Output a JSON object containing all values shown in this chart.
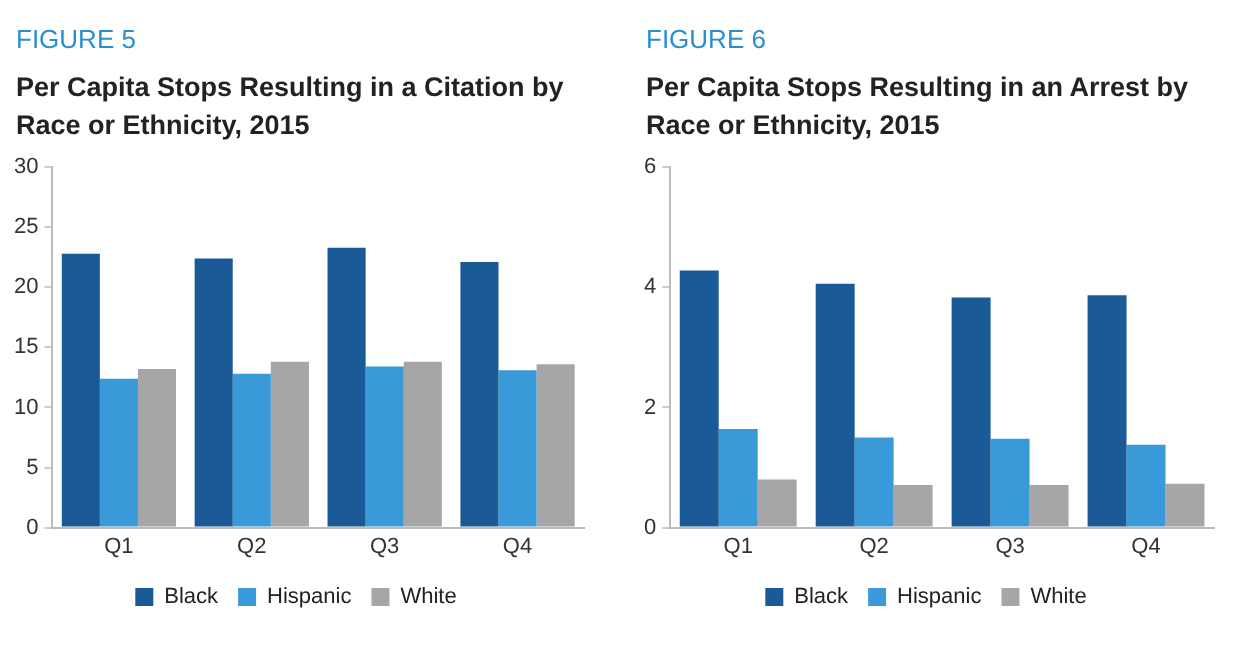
{
  "chart_data": [
    {
      "type": "bar",
      "annotations": [
        "FIGURE 5"
      ],
      "title": "Per Capita Stops Resulting in a Citation by Race or Ethnicity, 2015",
      "categories": [
        "Q1",
        "Q2",
        "Q3",
        "Q4"
      ],
      "series": [
        {
          "name": "Black",
          "color": "#1a5a96",
          "values": [
            22.8,
            22.4,
            23.3,
            22.1
          ]
        },
        {
          "name": "Hispanic",
          "color": "#3a9ad9",
          "values": [
            12.4,
            12.8,
            13.4,
            13.1
          ]
        },
        {
          "name": "White",
          "color": "#a6a6a6",
          "values": [
            13.2,
            13.8,
            13.8,
            13.6
          ]
        }
      ],
      "ylim": [
        0,
        30
      ],
      "yticks": [
        0,
        5,
        10,
        15,
        20,
        25,
        30
      ],
      "grid": false,
      "legend": "bottom"
    },
    {
      "type": "bar",
      "annotations": [
        "FIGURE 6"
      ],
      "title": "Per Capita Stops Resulting in an Arrest by Race or Ethnicity, 2015",
      "categories": [
        "Q1",
        "Q2",
        "Q3",
        "Q4"
      ],
      "series": [
        {
          "name": "Black",
          "color": "#1a5a96",
          "values": [
            4.28,
            4.06,
            3.83,
            3.87
          ]
        },
        {
          "name": "Hispanic",
          "color": "#3a9ad9",
          "values": [
            1.64,
            1.5,
            1.48,
            1.38
          ]
        },
        {
          "name": "White",
          "color": "#a6a6a6",
          "values": [
            0.8,
            0.71,
            0.71,
            0.73
          ]
        }
      ],
      "ylim": [
        0,
        6
      ],
      "yticks": [
        0,
        2,
        4,
        6
      ],
      "grid": false,
      "legend": "bottom"
    }
  ]
}
